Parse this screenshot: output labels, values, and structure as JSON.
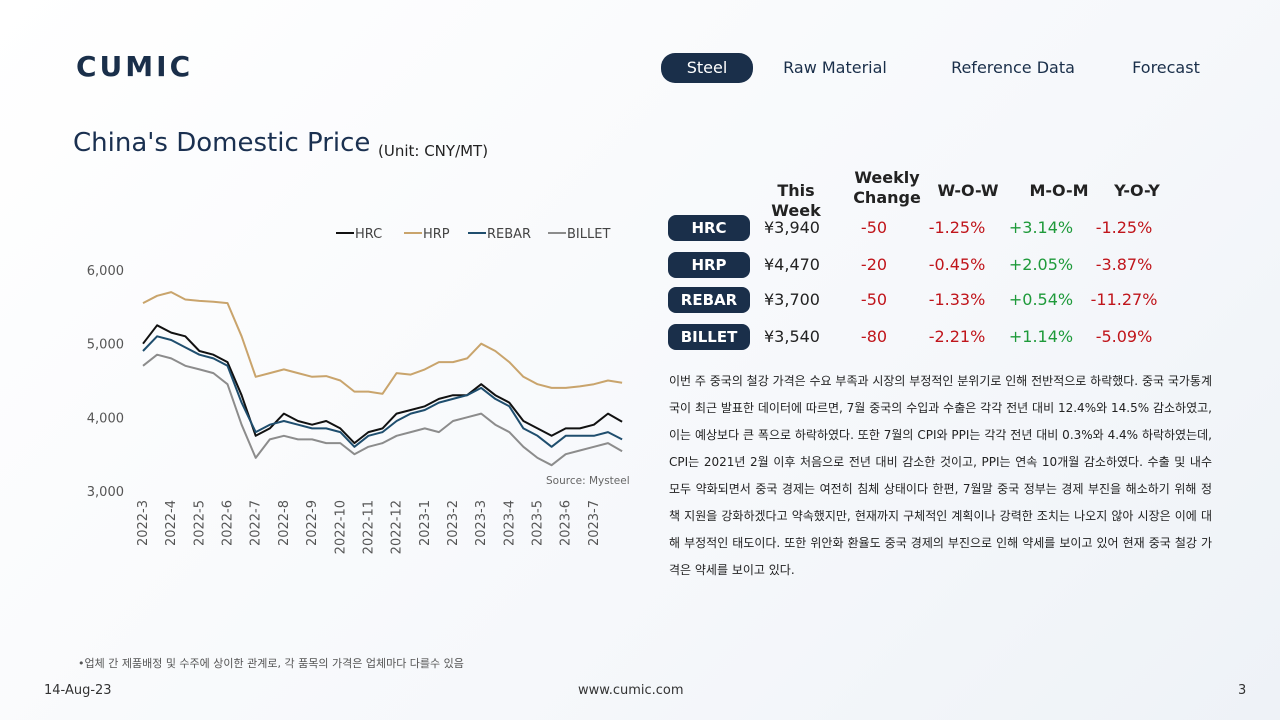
{
  "header": {
    "logo": "CUMIC",
    "nav": [
      "Steel",
      "Raw Material",
      "Reference Data",
      "Forecast"
    ]
  },
  "title": "China's Domestic Price",
  "unit": "(Unit: CNY/MT)",
  "chart_data": {
    "type": "line",
    "source": "Source: Mysteel",
    "categories": [
      "2022-3",
      null,
      "2022-4",
      null,
      "2022-5",
      null,
      "2022-6",
      null,
      "2022-7",
      null,
      "2022-8",
      null,
      "2022-9",
      null,
      "2022-10",
      null,
      "2022-11",
      null,
      "2022-12",
      null,
      "2023-1",
      null,
      "2023-2",
      null,
      "2023-3",
      null,
      "2023-4",
      null,
      "2023-5",
      null,
      "2023-6",
      null,
      "2023-7",
      null,
      null
    ],
    "series": [
      {
        "name": "HRC",
        "color": "#111111",
        "values": [
          5000,
          5250,
          5150,
          5100,
          4900,
          4850,
          4750,
          4300,
          3750,
          3850,
          4050,
          3950,
          3900,
          3950,
          3850,
          3650,
          3800,
          3850,
          4050,
          4100,
          4150,
          4250,
          4300,
          4300,
          4450,
          4300,
          4200,
          3950,
          3850,
          3750,
          3850,
          3850,
          3900,
          4050,
          3940
        ]
      },
      {
        "name": "HRP",
        "color": "#c9a46c",
        "values": [
          5550,
          5650,
          5700,
          5600,
          5580,
          5570,
          5550,
          5100,
          4550,
          4600,
          4650,
          4600,
          4550,
          4560,
          4500,
          4350,
          4350,
          4320,
          4600,
          4580,
          4650,
          4750,
          4750,
          4800,
          5000,
          4900,
          4750,
          4550,
          4450,
          4400,
          4400,
          4420,
          4450,
          4500,
          4470
        ]
      },
      {
        "name": "REBAR",
        "color": "#1f4e6e",
        "values": [
          4900,
          5100,
          5050,
          4950,
          4850,
          4800,
          4700,
          4200,
          3800,
          3900,
          3950,
          3900,
          3850,
          3850,
          3800,
          3600,
          3750,
          3800,
          3950,
          4050,
          4100,
          4200,
          4250,
          4300,
          4400,
          4250,
          4150,
          3850,
          3750,
          3600,
          3750,
          3750,
          3750,
          3800,
          3700
        ]
      },
      {
        "name": "BILLET",
        "color": "#8c8c8c",
        "values": [
          4700,
          4850,
          4800,
          4700,
          4650,
          4600,
          4450,
          3900,
          3450,
          3700,
          3750,
          3700,
          3700,
          3650,
          3650,
          3500,
          3600,
          3650,
          3750,
          3800,
          3850,
          3800,
          3950,
          4000,
          4050,
          3900,
          3800,
          3600,
          3450,
          3350,
          3500,
          3550,
          3600,
          3650,
          3540
        ]
      }
    ],
    "ylim": [
      3000,
      6000
    ],
    "yticks": [
      {
        "value": 3000,
        "label": "3,000"
      },
      {
        "value": 4000,
        "label": "4,000"
      },
      {
        "value": 5000,
        "label": "5,000"
      },
      {
        "value": 6000,
        "label": "6,000"
      }
    ],
    "legend": "top"
  },
  "table": {
    "headers": [
      "This Week",
      "Weekly Change",
      "W-O-W",
      "M-O-M",
      "Y-O-Y"
    ],
    "rows": [
      [
        "HRC",
        "¥3,940",
        "-50",
        "-1.25%",
        "+3.14%",
        "-1.25%"
      ],
      [
        "HRP",
        "¥4,470",
        "-20",
        "-0.45%",
        "+2.05%",
        "-3.87%"
      ],
      [
        "REBAR",
        "¥3,700",
        "-50",
        "-1.33%",
        "+0.54%",
        "-11.27%"
      ],
      [
        "BILLET",
        "¥3,540",
        "-80",
        "-2.21%",
        "+1.14%",
        "-5.09%"
      ]
    ]
  },
  "body": "이번 주 중국의 철강 가격은 수요 부족과 시장의 부정적인 분위기로 인해 전반적으로 하락했다. 중국 국가통계국이 최근 발표한 데이터에 따르면, 7월 중국의 수입과 수출은 각각 전년 대비 12.4%와 14.5% 감소하였고, 이는 예상보다 큰 폭으로 하락하였다. 또한 7월의 CPI와 PPI는 각각 전년 대비 0.3%와 4.4% 하락하였는데, CPI는 2021년 2월 이후 처음으로 전년 대비 감소한 것이고, PPI는 연속 10개월 감소하였다. 수출 및 내수 모두 약화되면서 중국 경제는 여전히 침체 상태이다 한편, 7월말 중국 정부는 경제 부진을 해소하기 위해 정책 지원을 강화하겠다고 약속했지만, 현재까지 구체적인 계획이나 강력한 조치는 나오지 않아 시장은 이에 대해 부정적인 태도이다. 또한 위안화 환율도 중국 경제의 부진으로 인해 약세를 보이고 있어 현재 중국 철강 가격은 약세를 보이고 있다.",
  "footnote": "•업체 간 제품배정 및 수주에 상이한 관계로, 각 품목의 가격은 업체마다 다를수 있음",
  "footer": {
    "date": "14-Aug-23",
    "url": "www.cumic.com",
    "page": "3"
  }
}
